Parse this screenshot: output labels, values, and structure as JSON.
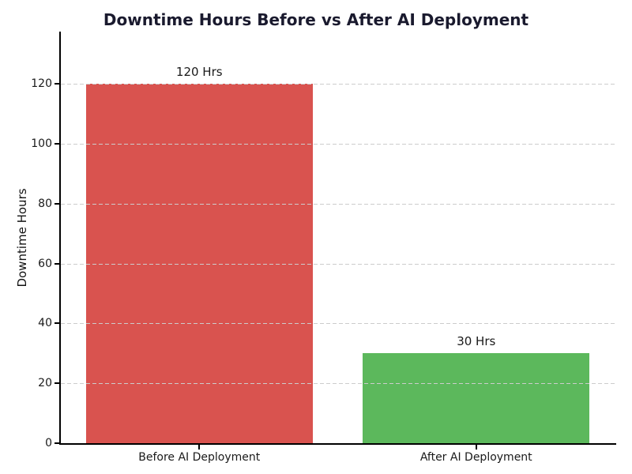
{
  "chart_data": {
    "type": "bar",
    "title": "Downtime Hours Before vs After AI Deployment",
    "xlabel": "",
    "ylabel": "Downtime Hours",
    "categories": [
      "Before AI Deployment",
      "After AI Deployment"
    ],
    "values": [
      120,
      30
    ],
    "bar_labels": [
      "120 Hrs",
      "30 Hrs"
    ],
    "bar_colors": [
      "#d9534f",
      "#5cb85c"
    ],
    "yticks": [
      0,
      20,
      40,
      60,
      80,
      100,
      120
    ],
    "ylim": [
      0,
      137.5
    ],
    "grid": "horizontal dashed",
    "legend_position": "none",
    "colors": {
      "title": "#1a1a2e",
      "axis": "#000000",
      "tick_label": "#1a1a1a",
      "gridline": "#cccccc",
      "background": "#ffffff"
    }
  }
}
